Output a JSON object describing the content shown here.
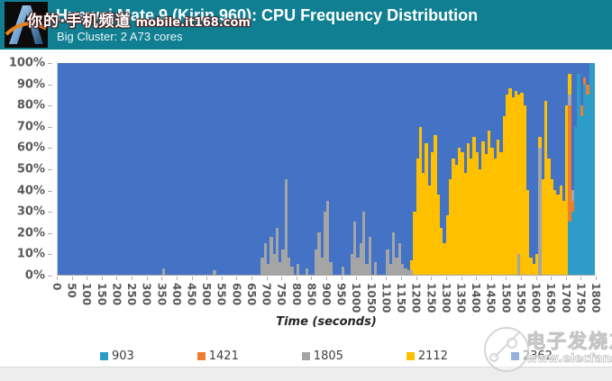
{
  "header": {
    "title": "Huawei Mate 9 (Kirin 960): CPU Frequency Distribution",
    "subtitle": "Big Cluster: 2 A73 cores",
    "bg_color": "#107F92",
    "logo": "anandtech-logo"
  },
  "watermarks": {
    "top": {
      "cn": "你的·手机频道",
      "en": "mobile.it168.com"
    },
    "bottom": {
      "cn": "电子发烧友",
      "en": "www.elecfans.com",
      "icon": "elecfans-molecule-logo"
    }
  },
  "chart_data": {
    "type": "area",
    "subtype": "100%-stacked-frequency-distribution",
    "title": "Huawei Mate 9 (Kirin 960): CPU Frequency Distribution",
    "xlabel": "Time (seconds)",
    "ylabel": "",
    "x_range": [
      0,
      1800
    ],
    "y_range_percent": [
      0,
      100
    ],
    "grid": false,
    "legend_position": "bottom",
    "y_ticks": [
      "100%",
      "90%",
      "80%",
      "70%",
      "60%",
      "50%",
      "40%",
      "30%",
      "20%",
      "10%",
      "0%"
    ],
    "x_ticks": [
      0,
      50,
      100,
      150,
      200,
      250,
      300,
      350,
      400,
      450,
      500,
      550,
      600,
      650,
      700,
      750,
      800,
      850,
      900,
      950,
      1000,
      1050,
      1100,
      1150,
      1200,
      1250,
      1300,
      1350,
      1400,
      1450,
      1500,
      1550,
      1600,
      1650,
      1700,
      1750,
      1800
    ],
    "series_order_bottom_to_top": [
      "903",
      "1421",
      "1805",
      "2112",
      "2362"
    ],
    "series_colors": {
      "903": "#2D9CC7",
      "1421": "#ED7D31",
      "1805": "#A5A5A5",
      "2112": "#FFC000",
      "2362": "#4472C4"
    },
    "legend": [
      {
        "label": "903",
        "color": "#2D9CC7"
      },
      {
        "label": "1421",
        "color": "#ED7D31"
      },
      {
        "label": "1805",
        "color": "#A5A5A5"
      },
      {
        "label": "2112",
        "color": "#FFC000"
      },
      {
        "label": "2362",
        "color": "#4472C4"
      }
    ],
    "bin_seconds": 10,
    "columns_format": "[pct903, pct1421, pct1805, pct2112, pct2362] per 10s bin, t=0..1790",
    "columns": [
      [
        0,
        0,
        0,
        0,
        100
      ],
      [
        0,
        0,
        0,
        0,
        100
      ],
      [
        0,
        0,
        0,
        0,
        100
      ],
      [
        0,
        0,
        0,
        0,
        100
      ],
      [
        0,
        0,
        0,
        0,
        100
      ],
      [
        0,
        0,
        0,
        0,
        100
      ],
      [
        0,
        0,
        0,
        0,
        100
      ],
      [
        0,
        0,
        0,
        0,
        100
      ],
      [
        0,
        0,
        0,
        0,
        100
      ],
      [
        0,
        0,
        0,
        0,
        100
      ],
      [
        0,
        0,
        0,
        0,
        100
      ],
      [
        0,
        0,
        0,
        0,
        100
      ],
      [
        0,
        0,
        0,
        0,
        100
      ],
      [
        0,
        0,
        0,
        0,
        100
      ],
      [
        0,
        0,
        0,
        0,
        100
      ],
      [
        0,
        0,
        0,
        0,
        100
      ],
      [
        0,
        0,
        0,
        0,
        100
      ],
      [
        0,
        0,
        0,
        0,
        100
      ],
      [
        0,
        0,
        0,
        0,
        100
      ],
      [
        0,
        0,
        0,
        0,
        100
      ],
      [
        0,
        0,
        0,
        0,
        100
      ],
      [
        0,
        0,
        0,
        0,
        100
      ],
      [
        0,
        0,
        0,
        0,
        100
      ],
      [
        0,
        0,
        0,
        0,
        100
      ],
      [
        0,
        0,
        0,
        0,
        100
      ],
      [
        0,
        0,
        0,
        0,
        100
      ],
      [
        0,
        0,
        0,
        0,
        100
      ],
      [
        0,
        0,
        0,
        0,
        100
      ],
      [
        0,
        0,
        0,
        0,
        100
      ],
      [
        0,
        0,
        0,
        0,
        100
      ],
      [
        0,
        0,
        0,
        0,
        100
      ],
      [
        0,
        0,
        0,
        0,
        100
      ],
      [
        0,
        0,
        0,
        0,
        100
      ],
      [
        0,
        0,
        0,
        0,
        100
      ],
      [
        0,
        0,
        0,
        0,
        100
      ],
      [
        0,
        0,
        3,
        0,
        97
      ],
      [
        0,
        0,
        0,
        0,
        100
      ],
      [
        0,
        0,
        0,
        0,
        100
      ],
      [
        0,
        0,
        0,
        0,
        100
      ],
      [
        0,
        0,
        0,
        0,
        100
      ],
      [
        0,
        0,
        0,
        0,
        100
      ],
      [
        0,
        0,
        0,
        0,
        100
      ],
      [
        0,
        0,
        0,
        0,
        100
      ],
      [
        0,
        0,
        0,
        0,
        100
      ],
      [
        0,
        0,
        0,
        0,
        100
      ],
      [
        0,
        0,
        0,
        0,
        100
      ],
      [
        0,
        0,
        0,
        0,
        100
      ],
      [
        0,
        0,
        0,
        0,
        100
      ],
      [
        0,
        0,
        0,
        0,
        100
      ],
      [
        0,
        0,
        0,
        0,
        100
      ],
      [
        0,
        0,
        0,
        0,
        100
      ],
      [
        0,
        0,
        0,
        0,
        100
      ],
      [
        0,
        0,
        2,
        0,
        98
      ],
      [
        0,
        0,
        0,
        0,
        100
      ],
      [
        0,
        0,
        0,
        0,
        100
      ],
      [
        0,
        0,
        0,
        0,
        100
      ],
      [
        0,
        0,
        0,
        0,
        100
      ],
      [
        0,
        0,
        0,
        0,
        100
      ],
      [
        0,
        0,
        0,
        0,
        100
      ],
      [
        0,
        0,
        0,
        0,
        100
      ],
      [
        0,
        0,
        0,
        0,
        100
      ],
      [
        0,
        0,
        0,
        0,
        100
      ],
      [
        0,
        0,
        0,
        0,
        100
      ],
      [
        0,
        0,
        0,
        0,
        100
      ],
      [
        0,
        0,
        0,
        0,
        100
      ],
      [
        0,
        0,
        0,
        0,
        100
      ],
      [
        0,
        0,
        0,
        0,
        100
      ],
      [
        0,
        0,
        0,
        0,
        100
      ],
      [
        0,
        0,
        8,
        0,
        92
      ],
      [
        0,
        0,
        15,
        0,
        85
      ],
      [
        0,
        0,
        5,
        0,
        95
      ],
      [
        0,
        0,
        18,
        0,
        82
      ],
      [
        0,
        0,
        10,
        0,
        90
      ],
      [
        0,
        0,
        22,
        0,
        78
      ],
      [
        0,
        0,
        6,
        0,
        94
      ],
      [
        0,
        0,
        12,
        0,
        88
      ],
      [
        0,
        0,
        45,
        0,
        55
      ],
      [
        0,
        0,
        8,
        0,
        92
      ],
      [
        0,
        0,
        4,
        0,
        96
      ],
      [
        0,
        0,
        0,
        0,
        100
      ],
      [
        0,
        0,
        5,
        0,
        95
      ],
      [
        0,
        0,
        0,
        0,
        100
      ],
      [
        0,
        0,
        0,
        0,
        100
      ],
      [
        0,
        0,
        3,
        0,
        97
      ],
      [
        0,
        0,
        0,
        0,
        100
      ],
      [
        0,
        0,
        0,
        0,
        100
      ],
      [
        0,
        0,
        12,
        0,
        88
      ],
      [
        0,
        0,
        20,
        0,
        80
      ],
      [
        0,
        0,
        8,
        0,
        92
      ],
      [
        0,
        0,
        30,
        0,
        70
      ],
      [
        0,
        0,
        35,
        0,
        65
      ],
      [
        0,
        0,
        6,
        0,
        94
      ],
      [
        0,
        0,
        0,
        0,
        100
      ],
      [
        0,
        0,
        0,
        0,
        100
      ],
      [
        0,
        0,
        0,
        0,
        100
      ],
      [
        0,
        0,
        4,
        0,
        96
      ],
      [
        0,
        0,
        0,
        0,
        100
      ],
      [
        0,
        0,
        0,
        0,
        100
      ],
      [
        0,
        0,
        10,
        0,
        90
      ],
      [
        0,
        0,
        25,
        0,
        75
      ],
      [
        0,
        0,
        8,
        0,
        92
      ],
      [
        0,
        0,
        15,
        0,
        85
      ],
      [
        0,
        0,
        30,
        0,
        70
      ],
      [
        0,
        0,
        5,
        0,
        95
      ],
      [
        0,
        0,
        18,
        0,
        82
      ],
      [
        0,
        0,
        0,
        0,
        100
      ],
      [
        0,
        0,
        6,
        0,
        94
      ],
      [
        0,
        0,
        0,
        0,
        100
      ],
      [
        0,
        0,
        0,
        0,
        100
      ],
      [
        0,
        0,
        0,
        0,
        100
      ],
      [
        0,
        0,
        12,
        0,
        88
      ],
      [
        0,
        0,
        5,
        0,
        95
      ],
      [
        0,
        0,
        20,
        0,
        80
      ],
      [
        0,
        0,
        8,
        0,
        92
      ],
      [
        0,
        0,
        15,
        0,
        85
      ],
      [
        0,
        0,
        5,
        0,
        95
      ],
      [
        0,
        0,
        3,
        0,
        97
      ],
      [
        0,
        0,
        2,
        0,
        98
      ],
      [
        0,
        0,
        2,
        5,
        93
      ],
      [
        0,
        0,
        0,
        30,
        70
      ],
      [
        0,
        0,
        0,
        55,
        45
      ],
      [
        0,
        0,
        0,
        70,
        30
      ],
      [
        0,
        0,
        0,
        48,
        52
      ],
      [
        0,
        0,
        0,
        62,
        38
      ],
      [
        0,
        0,
        0,
        42,
        58
      ],
      [
        0,
        0,
        0,
        58,
        42
      ],
      [
        0,
        0,
        0,
        66,
        34
      ],
      [
        0,
        0,
        0,
        38,
        62
      ],
      [
        0,
        0,
        0,
        22,
        78
      ],
      [
        0,
        0,
        0,
        15,
        85
      ],
      [
        0,
        0,
        0,
        28,
        72
      ],
      [
        0,
        0,
        0,
        45,
        55
      ],
      [
        0,
        0,
        0,
        55,
        45
      ],
      [
        0,
        0,
        0,
        52,
        48
      ],
      [
        0,
        0,
        0,
        60,
        40
      ],
      [
        0,
        0,
        0,
        58,
        42
      ],
      [
        0,
        0,
        0,
        48,
        52
      ],
      [
        0,
        0,
        0,
        62,
        38
      ],
      [
        0,
        0,
        0,
        55,
        45
      ],
      [
        0,
        0,
        0,
        65,
        35
      ],
      [
        0,
        0,
        0,
        58,
        42
      ],
      [
        0,
        0,
        0,
        50,
        50
      ],
      [
        0,
        0,
        0,
        63,
        37
      ],
      [
        0,
        0,
        0,
        57,
        43
      ],
      [
        0,
        0,
        0,
        68,
        32
      ],
      [
        0,
        0,
        0,
        60,
        40
      ],
      [
        0,
        0,
        0,
        55,
        45
      ],
      [
        0,
        0,
        0,
        64,
        36
      ],
      [
        0,
        0,
        0,
        58,
        42
      ],
      [
        0,
        0,
        0,
        75,
        25
      ],
      [
        0,
        0,
        0,
        85,
        15
      ],
      [
        0,
        0,
        0,
        88,
        12
      ],
      [
        0,
        0,
        0,
        84,
        16
      ],
      [
        0,
        0,
        0,
        87,
        13
      ],
      [
        0,
        0,
        10,
        75,
        15
      ],
      [
        0,
        0,
        0,
        86,
        14
      ],
      [
        0,
        0,
        0,
        80,
        20
      ],
      [
        0,
        0,
        0,
        40,
        60
      ],
      [
        0,
        0,
        0,
        8,
        92
      ],
      [
        0,
        0,
        0,
        5,
        95
      ],
      [
        0,
        0,
        0,
        10,
        90
      ],
      [
        0,
        0,
        60,
        5,
        35
      ],
      [
        0,
        0,
        0,
        45,
        55
      ],
      [
        0,
        0,
        0,
        82,
        18
      ],
      [
        0,
        0,
        0,
        55,
        45
      ],
      [
        0,
        0,
        0,
        45,
        55
      ],
      [
        0,
        0,
        0,
        40,
        60
      ],
      [
        0,
        0,
        0,
        38,
        62
      ],
      [
        0,
        0,
        0,
        42,
        58
      ],
      [
        0,
        0,
        0,
        35,
        65
      ],
      [
        0,
        0,
        0,
        80,
        20
      ],
      [
        25,
        55,
        5,
        10,
        5
      ],
      [
        30,
        5,
        5,
        0,
        60
      ],
      [
        70,
        0,
        0,
        0,
        30
      ],
      [
        95,
        0,
        0,
        0,
        5
      ],
      [
        75,
        5,
        0,
        0,
        20
      ],
      [
        90,
        3,
        0,
        0,
        7
      ],
      [
        85,
        5,
        0,
        0,
        10
      ],
      [
        100,
        0,
        0,
        0,
        0
      ],
      [
        100,
        0,
        0,
        0,
        0
      ]
    ]
  }
}
